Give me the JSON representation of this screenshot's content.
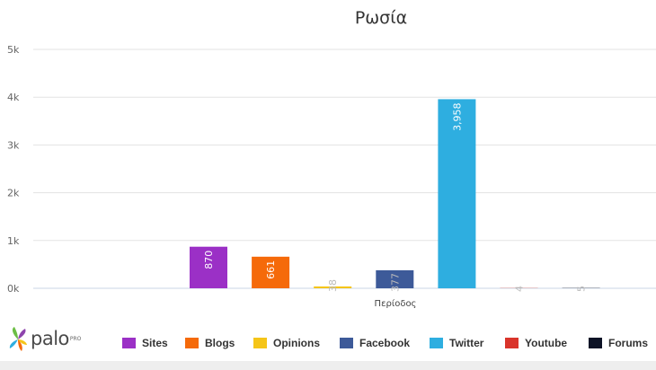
{
  "brand": {
    "name": "palo",
    "sup": "PRO"
  },
  "chart_data": {
    "type": "bar",
    "title": "Ρωσία",
    "xlabel": "Περίοδος",
    "ylabel": "",
    "ylim": [
      0,
      5000
    ],
    "y_ticks": [
      "0k",
      "1k",
      "2k",
      "3k",
      "4k",
      "5k"
    ],
    "grid": true,
    "legend_position": "bottom",
    "series": [
      {
        "name": "Sites",
        "color": "#9b30c6",
        "value": 870,
        "label": "870"
      },
      {
        "name": "Blogs",
        "color": "#f56a0a",
        "value": 661,
        "label": "661"
      },
      {
        "name": "Opinions",
        "color": "#f5c518",
        "value": 38,
        "label": "38"
      },
      {
        "name": "Facebook",
        "color": "#3d5a99",
        "value": 377,
        "label": "377"
      },
      {
        "name": "Twitter",
        "color": "#2eaee0",
        "value": 3958,
        "label": "3,958"
      },
      {
        "name": "Youtube",
        "color": "#d9342b",
        "value": 4,
        "label": "4"
      },
      {
        "name": "Forums",
        "color": "#0d1326",
        "value": 5,
        "label": "5"
      }
    ]
  }
}
